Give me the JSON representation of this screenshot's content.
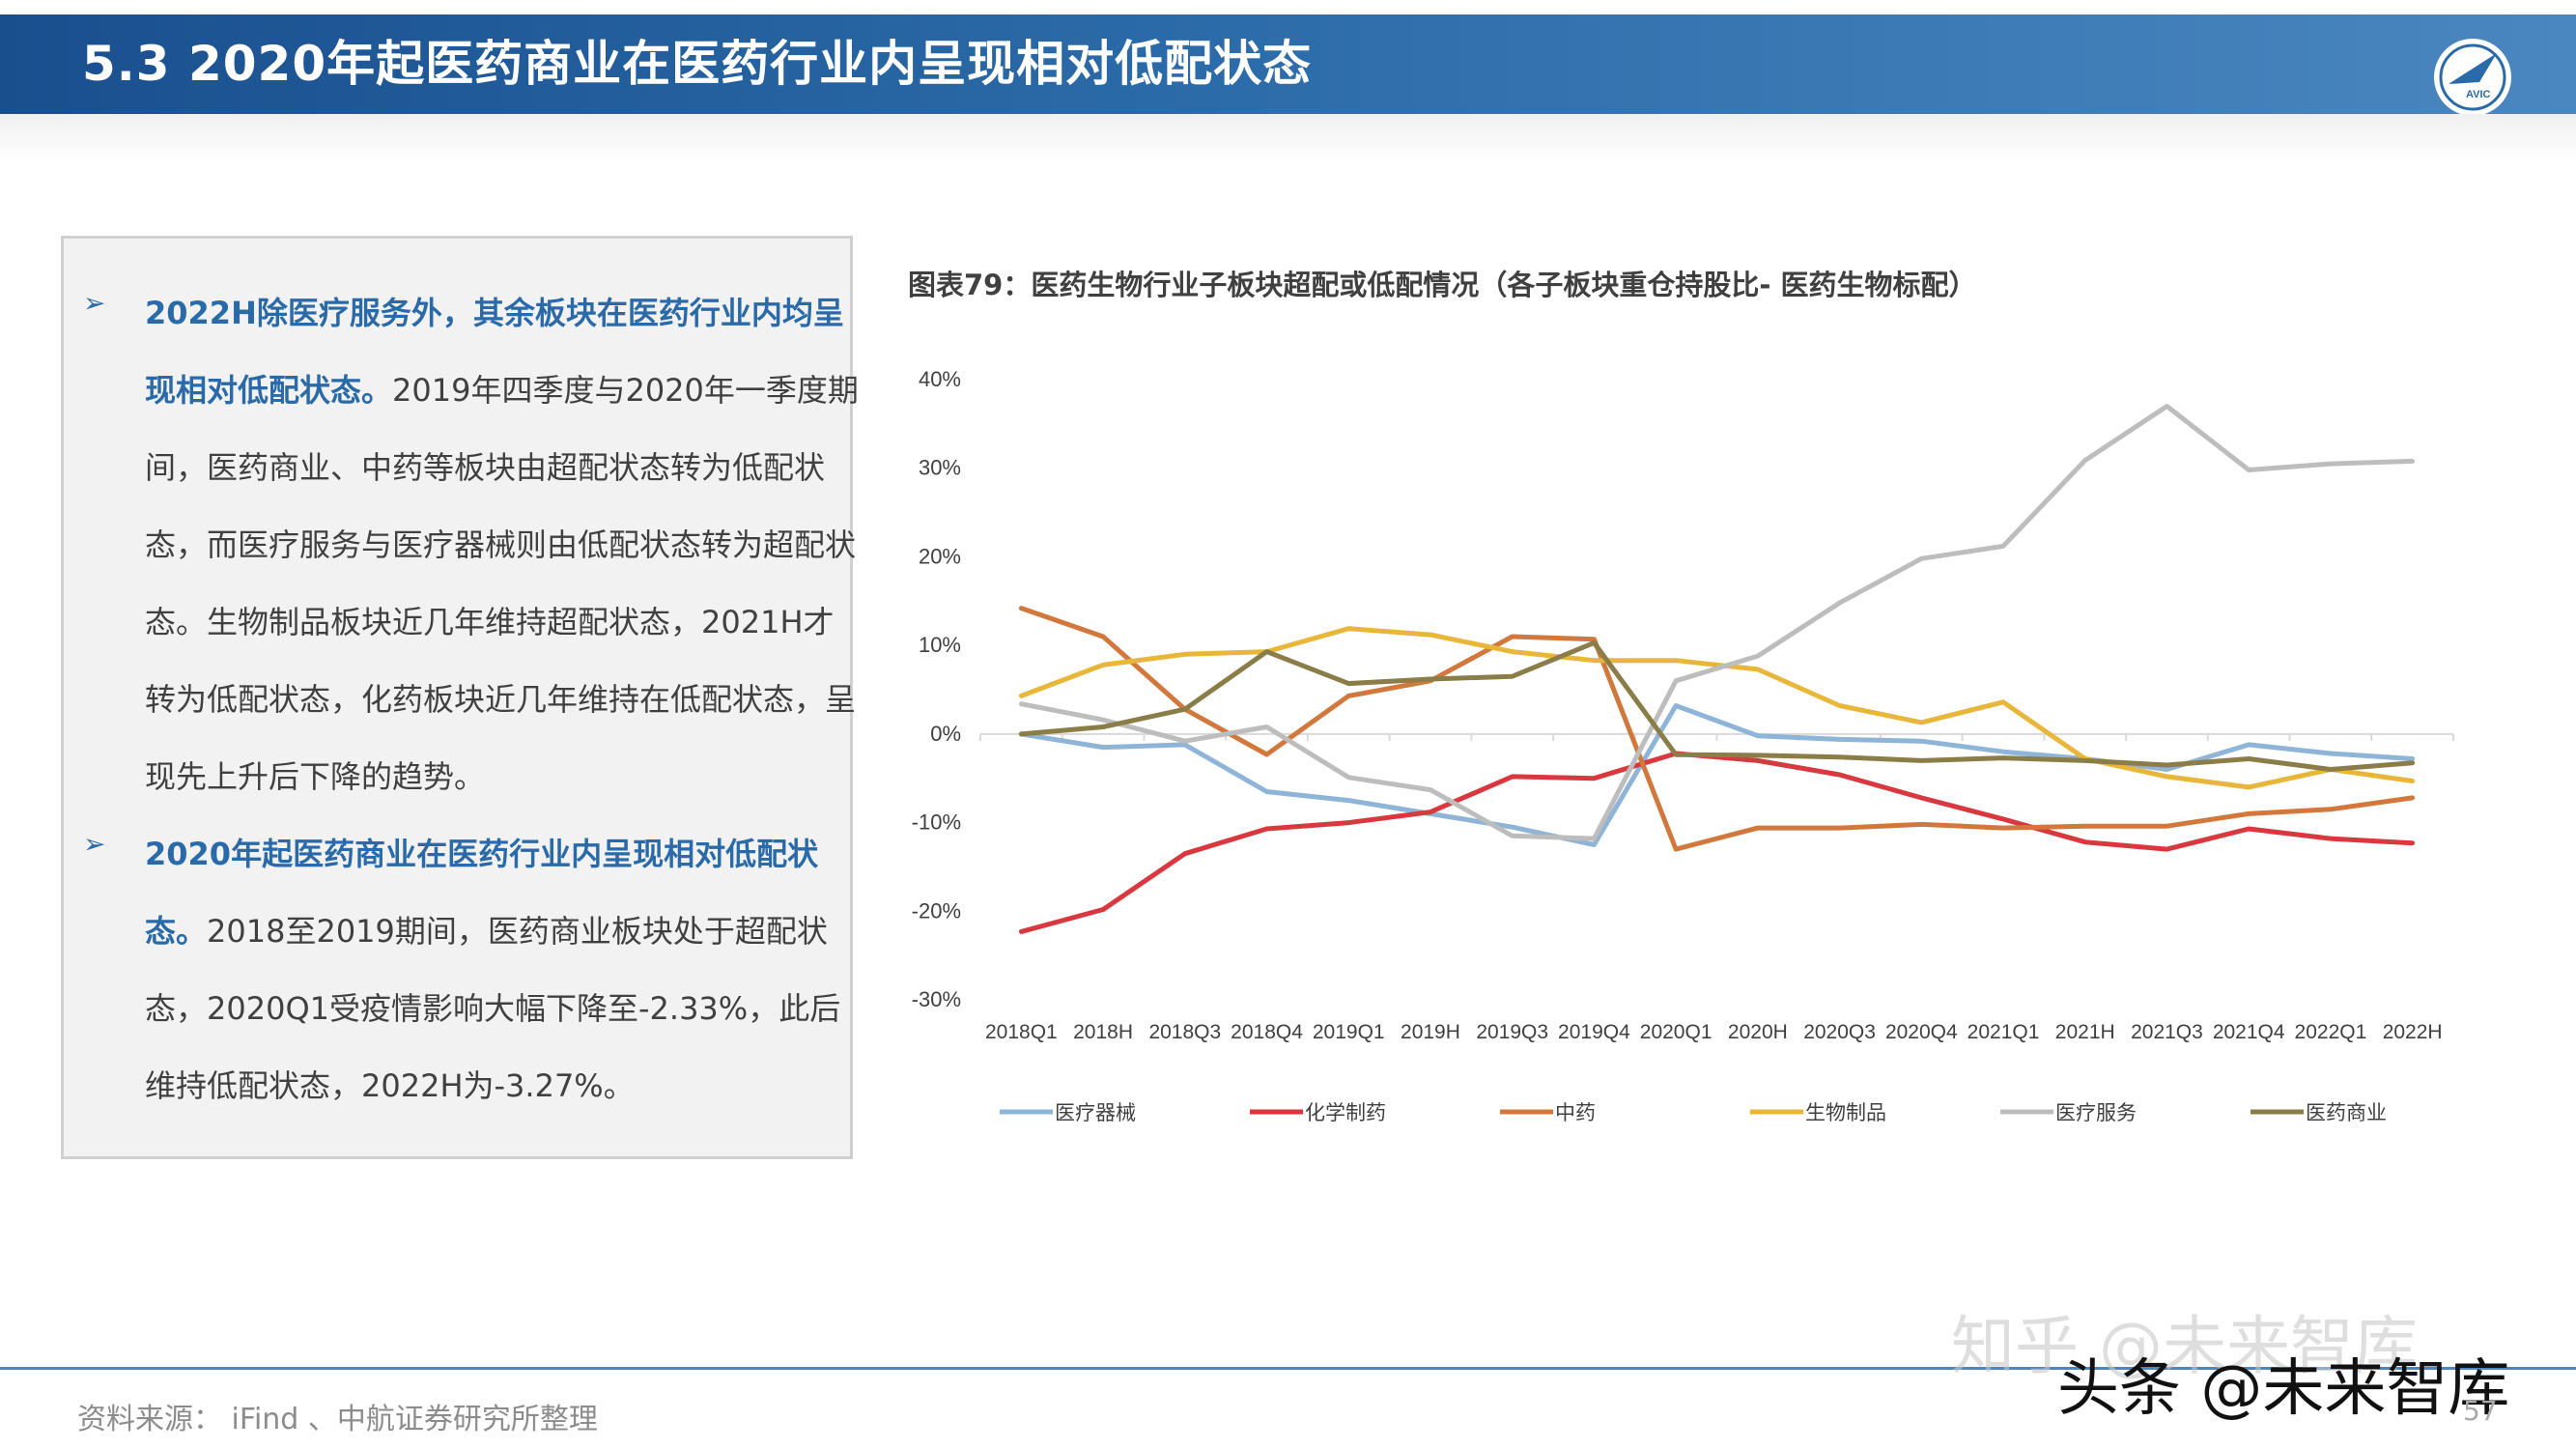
{
  "header": {
    "title": "5.3 2020年起医药商业在医药行业内呈现相对低配状态",
    "logo_text": "AVIC"
  },
  "textbox": {
    "bullet1_highlight": "2022H除医疗服务外，其余板块在医药行业内均呈现相对低配状态。",
    "bullet1_body": "2019年四季度与2020年一季度期间，医药商业、中药等板块由超配状态转为低配状态，而医疗服务与医疗器械则由低配状态转为超配状态。生物制品板块近几年维持超配状态，2021H才转为低配状态，化药板块近几年维持在低配状态，呈现先上升后下降的趋势。",
    "bullet2_highlight": "2020年起医药商业在医药行业内呈现相对低配状态。",
    "bullet2_body": "2018至2019期间，医药商业板块处于超配状态，2020Q1受疫情影响大幅下降至-2.33%，此后维持低配状态，2022H为-3.27%。",
    "bullet_symbol": "➢"
  },
  "chart_title": "图表79：医药生物行业子板块超配或低配情况（各子板块重仓持股比- 医药生物标配）",
  "footer": {
    "source": "资料来源： iFind 、中航证券研究所整理",
    "page_number": "57",
    "watermark_zhihu": "知乎 @未来智库",
    "watermark_toutiao": "头条 @未来智库"
  },
  "colors": {
    "header": "#2b6aa8",
    "highlight": "#2b6aa8"
  },
  "chart_data": {
    "type": "line",
    "categories": [
      "2018Q1",
      "2018H",
      "2018Q3",
      "2018Q4",
      "2019Q1",
      "2019H",
      "2019Q3",
      "2019Q4",
      "2020Q1",
      "2020H",
      "2020Q3",
      "2020Q4",
      "2021Q1",
      "2021H",
      "2021Q3",
      "2021Q4",
      "2022Q1",
      "2022H"
    ],
    "y_ticks": [
      "40%",
      "30%",
      "20%",
      "10%",
      "0%",
      "-10%",
      "-20%",
      "-30%"
    ],
    "ylim": [
      -30,
      40
    ],
    "y_unit": "%",
    "legend_position": "bottom",
    "series": [
      {
        "name": "医疗器械",
        "color": "#8eb4d8",
        "values": [
          0,
          -1.5,
          -1.2,
          -6.5,
          -7.5,
          -9,
          -10.5,
          -12.5,
          3.2,
          -0.2,
          -0.6,
          -0.8,
          -2,
          -2.8,
          -4,
          -1.2,
          -2.2,
          -2.8
        ]
      },
      {
        "name": "化学制药",
        "color": "#d9393e",
        "values": [
          -22.3,
          -19.8,
          -13.5,
          -10.7,
          -10,
          -8.8,
          -4.8,
          -5,
          -2.2,
          -3,
          -4.6,
          -7.2,
          -9.6,
          -12.2,
          -13,
          -10.7,
          -11.8,
          -12.3
        ]
      },
      {
        "name": "中药",
        "color": "#d2783c",
        "values": [
          14.2,
          11,
          2.8,
          -2.3,
          4.3,
          6,
          11,
          10.7,
          -13,
          -10.6,
          -10.6,
          -10.2,
          -10.6,
          -10.4,
          -10.4,
          -9,
          -8.5,
          -7.2
        ]
      },
      {
        "name": "生物制品",
        "color": "#e8b73a",
        "values": [
          4.3,
          7.8,
          9,
          9.3,
          11.9,
          11.2,
          9.3,
          8.3,
          8.3,
          7.3,
          3.2,
          1.3,
          3.6,
          -2.8,
          -4.8,
          -6,
          -4,
          -5.3
        ]
      },
      {
        "name": "医疗服务",
        "color": "#bdbdbd",
        "values": [
          3.4,
          1.6,
          -0.8,
          0.8,
          -4.9,
          -6.3,
          -11.5,
          -11.8,
          6,
          8.8,
          14.8,
          19.8,
          21.2,
          30.9,
          37,
          29.8,
          30.5,
          30.8
        ]
      },
      {
        "name": "医药商业",
        "color": "#8a7d48",
        "values": [
          0,
          0.8,
          2.8,
          9.3,
          5.7,
          6.2,
          6.5,
          10.3,
          -2.33,
          -2.4,
          -2.6,
          -3,
          -2.7,
          -3,
          -3.5,
          -2.8,
          -4,
          -3.27
        ]
      }
    ]
  }
}
